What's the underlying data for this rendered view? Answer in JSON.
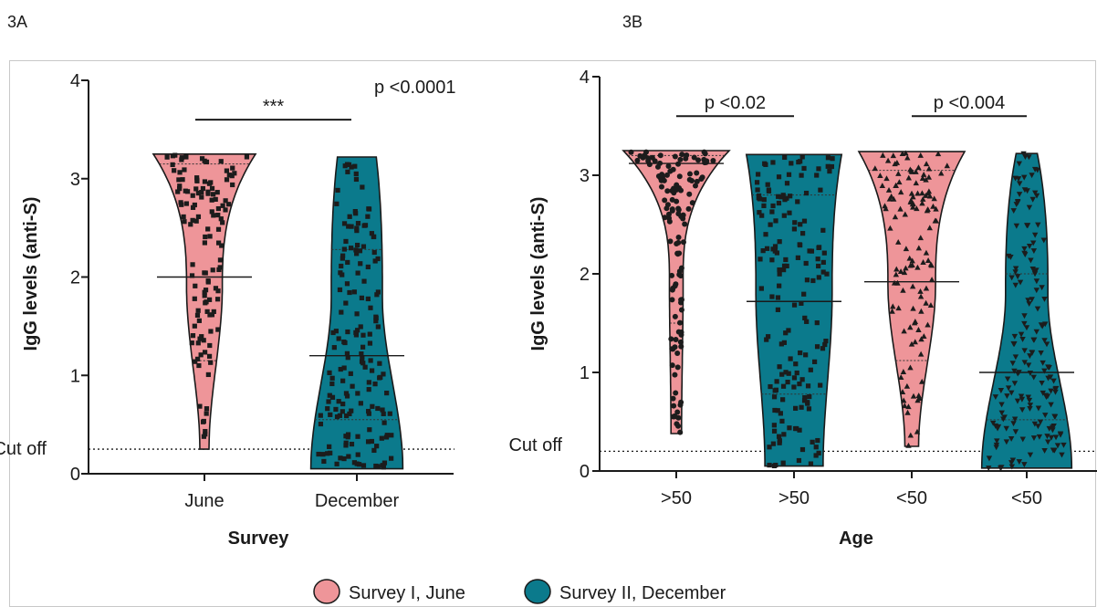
{
  "panels": {
    "a_label": "3A",
    "b_label": "3B"
  },
  "colors": {
    "survey1": "#ee9599",
    "survey2": "#0b7a8c",
    "points": "#1c1c1c"
  },
  "legend": {
    "items": [
      {
        "label": "Survey I, June",
        "color": "#ee9599"
      },
      {
        "label": "Survey II, December",
        "color": "#0b7a8c"
      }
    ]
  },
  "chart_data": [
    {
      "type": "violin",
      "panel": "3A",
      "xlabel": "Survey",
      "ylabel": "IgG levels (anti-S)",
      "ylim": [
        0,
        4
      ],
      "yticks": [
        "0",
        "1",
        "2",
        "3",
        "4"
      ],
      "cutoff": {
        "label": "Cut off",
        "value": 0.25
      },
      "annotations": [
        {
          "text": "p <0.0001",
          "kind": "corner"
        },
        {
          "text": "***",
          "kind": "bracket",
          "from": 0,
          "to": 1,
          "y": 3.6
        }
      ],
      "groups": [
        {
          "category": "June",
          "color": "#ee9599",
          "marker": "square",
          "median": 2.0,
          "quartiles": [
            1.15,
            3.15
          ],
          "range": [
            0.25,
            3.25
          ],
          "spread": [
            0.09,
            0.35,
            1.0
          ]
        },
        {
          "category": "December",
          "color": "#0b7a8c",
          "marker": "square",
          "median": 1.2,
          "quartiles": [
            0.55,
            2.28
          ],
          "range": [
            0.05,
            3.22
          ],
          "spread": [
            0.9,
            0.5,
            0.38
          ]
        }
      ]
    },
    {
      "type": "violin",
      "panel": "3B",
      "xlabel": "Age",
      "ylabel": "IgG levels (anti-S)",
      "ylim": [
        0,
        4
      ],
      "yticks": [
        "0",
        "1",
        "2",
        "3",
        "4"
      ],
      "cutoff": {
        "label": "Cut off",
        "value": 0.2
      },
      "annotations": [
        {
          "text": "p <0.02",
          "kind": "bracket",
          "from": 0,
          "to": 1,
          "y": 3.6
        },
        {
          "text": "p <0.004",
          "kind": "bracket",
          "from": 2,
          "to": 3,
          "y": 3.6
        }
      ],
      "groups": [
        {
          "category": ">50",
          "color": "#ee9599",
          "marker": "circle",
          "median": 3.12,
          "quartiles": [
            1.5,
            3.2
          ],
          "range": [
            0.38,
            3.25
          ],
          "spread": [
            0.1,
            0.13,
            1.0
          ]
        },
        {
          "category": ">50",
          "color": "#0b7a8c",
          "marker": "square",
          "median": 1.72,
          "quartiles": [
            0.78,
            2.8
          ],
          "range": [
            0.05,
            3.21
          ],
          "spread": [
            0.55,
            0.72,
            0.9
          ]
        },
        {
          "category": "<50",
          "color": "#ee9599",
          "marker": "triangle-up",
          "median": 1.92,
          "quartiles": [
            1.12,
            3.05
          ],
          "range": [
            0.25,
            3.24
          ],
          "spread": [
            0.13,
            0.45,
            1.0
          ]
        },
        {
          "category": "<50",
          "color": "#0b7a8c",
          "marker": "triangle-down",
          "median": 1.0,
          "quartiles": [
            0.52,
            2.0
          ],
          "range": [
            0.03,
            3.22
          ],
          "spread": [
            0.85,
            0.4,
            0.2
          ]
        }
      ]
    }
  ]
}
